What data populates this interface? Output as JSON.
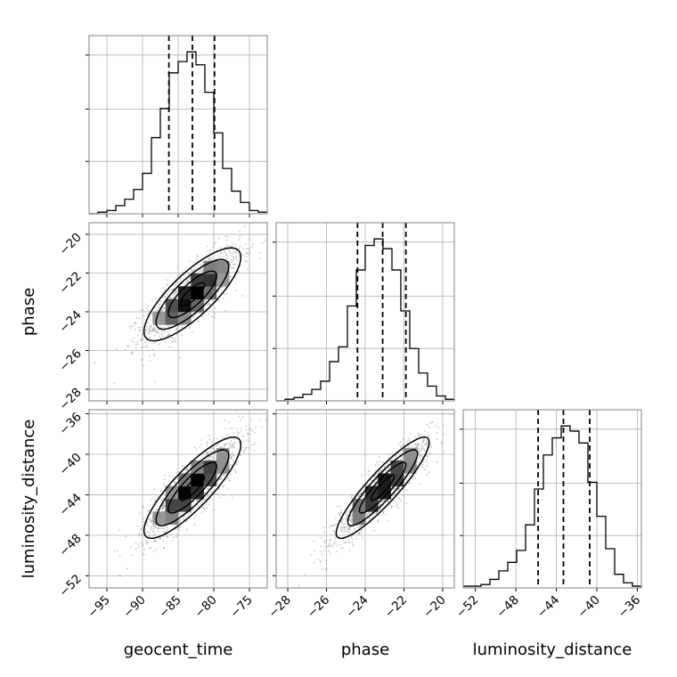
{
  "chart_data": {
    "type": "corner",
    "parameters": [
      "geocent_time",
      "phase",
      "luminosity_distance"
    ],
    "axis_labels": {
      "geocent_time": "geocent_time",
      "phase": "phase",
      "luminosity_distance": "luminosity_distance"
    },
    "ranges": {
      "geocent_time": [
        -97.5,
        -72.5
      ],
      "phase": [
        -28.6,
        -19.4
      ],
      "luminosity_distance": [
        -53.2,
        -35.6
      ]
    },
    "ticks": {
      "geocent_time": [
        -95,
        -90,
        -85,
        -80,
        -75
      ],
      "phase": [
        -28,
        -26,
        -24,
        -22,
        -20
      ],
      "luminosity_distance": [
        -52,
        -48,
        -44,
        -40,
        -36
      ]
    },
    "tick_labels": {
      "geocent_time": [
        "−95",
        "−90",
        "−85",
        "−80",
        "−75"
      ],
      "phase": [
        "−28",
        "−26",
        "−24",
        "−22",
        "−20"
      ],
      "luminosity_distance": [
        "−52",
        "−48",
        "−44",
        "−40",
        "−36"
      ]
    },
    "quantiles": {
      "geocent_time": [
        -86.3,
        -83.0,
        -79.9
      ],
      "phase": [
        -24.4,
        -23.1,
        -21.9
      ],
      "luminosity_distance": [
        -45.8,
        -43.3,
        -40.7
      ]
    },
    "histograms_1d": {
      "geocent_time": {
        "bin_edges": [
          -97.5,
          -96.25,
          -95.0,
          -93.75,
          -92.5,
          -91.25,
          -90.0,
          -88.75,
          -87.5,
          -86.25,
          -85.0,
          -83.75,
          -82.5,
          -81.25,
          -80.0,
          -78.75,
          -77.5,
          -76.25,
          -75.0,
          -73.75,
          -72.5
        ],
        "counts": [
          0,
          0.01,
          0.02,
          0.05,
          0.09,
          0.15,
          0.25,
          0.47,
          0.65,
          0.87,
          0.94,
          1.0,
          0.92,
          0.75,
          0.5,
          0.28,
          0.14,
          0.07,
          0.02,
          0.01
        ]
      },
      "phase": {
        "bin_edges": [
          -28.6,
          -28.14,
          -27.68,
          -27.22,
          -26.76,
          -26.3,
          -25.84,
          -25.38,
          -24.92,
          -24.46,
          -24.0,
          -23.54,
          -23.08,
          -22.62,
          -22.16,
          -21.7,
          -21.24,
          -20.78,
          -20.32,
          -19.86,
          -19.4
        ],
        "counts": [
          0,
          0.01,
          0.02,
          0.04,
          0.07,
          0.12,
          0.24,
          0.33,
          0.58,
          0.8,
          0.95,
          0.99,
          0.93,
          0.8,
          0.55,
          0.32,
          0.17,
          0.09,
          0.03,
          0.01
        ]
      },
      "luminosity_distance": {
        "bin_edges": [
          -53.2,
          -52.32,
          -51.44,
          -50.56,
          -49.68,
          -48.8,
          -47.92,
          -47.04,
          -46.16,
          -45.28,
          -44.4,
          -43.52,
          -42.64,
          -41.76,
          -40.88,
          -40.0,
          -39.12,
          -38.24,
          -37.36,
          -36.48,
          -35.6
        ],
        "counts": [
          0.01,
          0.01,
          0.02,
          0.05,
          0.1,
          0.15,
          0.22,
          0.37,
          0.58,
          0.78,
          0.88,
          0.95,
          0.92,
          0.85,
          0.62,
          0.42,
          0.23,
          0.08,
          0.03,
          0.01
        ]
      }
    },
    "panels_2d": [
      {
        "x": "geocent_time",
        "y": "phase",
        "mean": [
          -83.0,
          -23.1
        ],
        "sigma": [
          3.4,
          1.2
        ],
        "rho": 0.8
      },
      {
        "x": "geocent_time",
        "y": "luminosity_distance",
        "mean": [
          -83.0,
          -43.3
        ],
        "sigma": [
          3.4,
          2.5
        ],
        "rho": 0.85
      },
      {
        "x": "phase",
        "y": "luminosity_distance",
        "mean": [
          -23.1,
          -43.3
        ],
        "sigma": [
          1.2,
          2.5
        ],
        "rho": 0.9
      }
    ],
    "contour_levels_sigma": [
      0.5,
      1.0,
      1.5,
      2.0
    ],
    "grid": true,
    "colors": {
      "hist": "#000000",
      "points": "#9a9a9a",
      "grid": "#b0b0b0",
      "frame": "#808080"
    }
  }
}
